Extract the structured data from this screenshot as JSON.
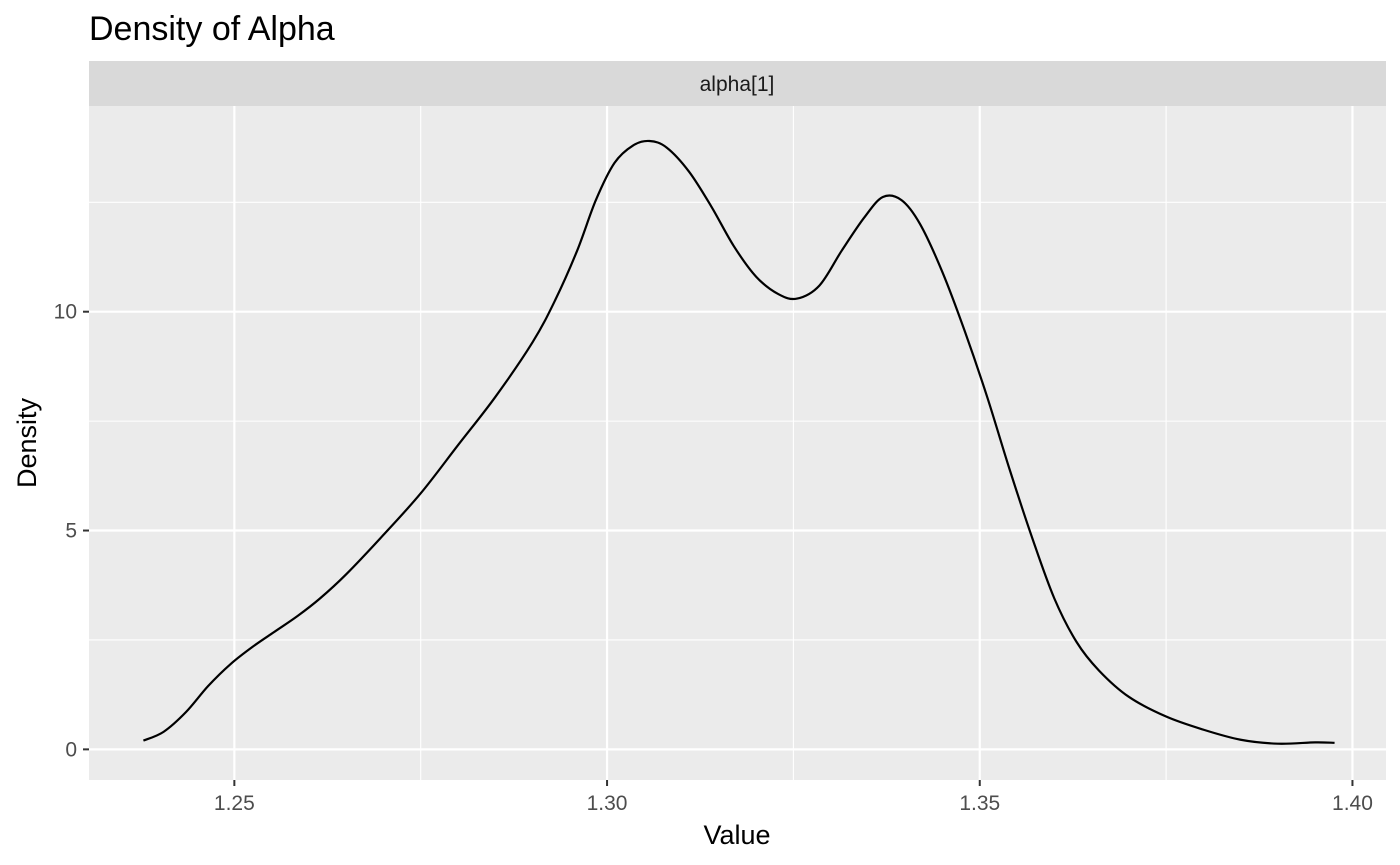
{
  "chart_data": {
    "type": "area",
    "title": "Density of Alpha",
    "facet_label": "alpha[1]",
    "xlabel": "Value",
    "ylabel": "Density",
    "xlim": [
      1.2305,
      1.4045
    ],
    "ylim": [
      -0.7,
      14.7
    ],
    "x_ticks": [
      1.25,
      1.3,
      1.35,
      1.4
    ],
    "x_tick_labels": [
      "1.25",
      "1.30",
      "1.35",
      "1.40"
    ],
    "x_minor": [
      1.275,
      1.325,
      1.375
    ],
    "y_ticks": [
      0,
      5,
      10
    ],
    "y_tick_labels": [
      "0",
      "5",
      "10"
    ],
    "y_minor": [
      2.5,
      7.5,
      12.5
    ],
    "grid": true,
    "colors": {
      "panel_background": "#EBEBEB",
      "strip_background": "#D9D9D9",
      "grid": "#FFFFFF",
      "line": "#000000"
    },
    "series": [
      {
        "x": [
          1.2378,
          1.2405,
          1.2435,
          1.2465,
          1.2495,
          1.2525,
          1.2555,
          1.2585,
          1.2615,
          1.265,
          1.27,
          1.275,
          1.28,
          1.285,
          1.29,
          1.293,
          1.296,
          1.2985,
          1.301,
          1.3035,
          1.3057,
          1.308,
          1.311,
          1.314,
          1.317,
          1.32,
          1.323,
          1.3255,
          1.3285,
          1.3315,
          1.3345,
          1.337,
          1.3395,
          1.342,
          1.345,
          1.348,
          1.351,
          1.354,
          1.357,
          1.36,
          1.363,
          1.366,
          1.37,
          1.375,
          1.38,
          1.385,
          1.39,
          1.395,
          1.3976
        ],
        "y": [
          0.2,
          0.4,
          0.85,
          1.45,
          1.95,
          2.35,
          2.7,
          3.05,
          3.45,
          4.0,
          4.9,
          5.85,
          6.95,
          8.05,
          9.3,
          10.25,
          11.4,
          12.55,
          13.4,
          13.8,
          13.9,
          13.75,
          13.2,
          12.4,
          11.5,
          10.8,
          10.4,
          10.3,
          10.6,
          11.4,
          12.15,
          12.62,
          12.55,
          12.0,
          10.9,
          9.55,
          8.05,
          6.4,
          4.85,
          3.45,
          2.45,
          1.8,
          1.2,
          0.75,
          0.45,
          0.22,
          0.13,
          0.16,
          0.15
        ]
      }
    ]
  }
}
